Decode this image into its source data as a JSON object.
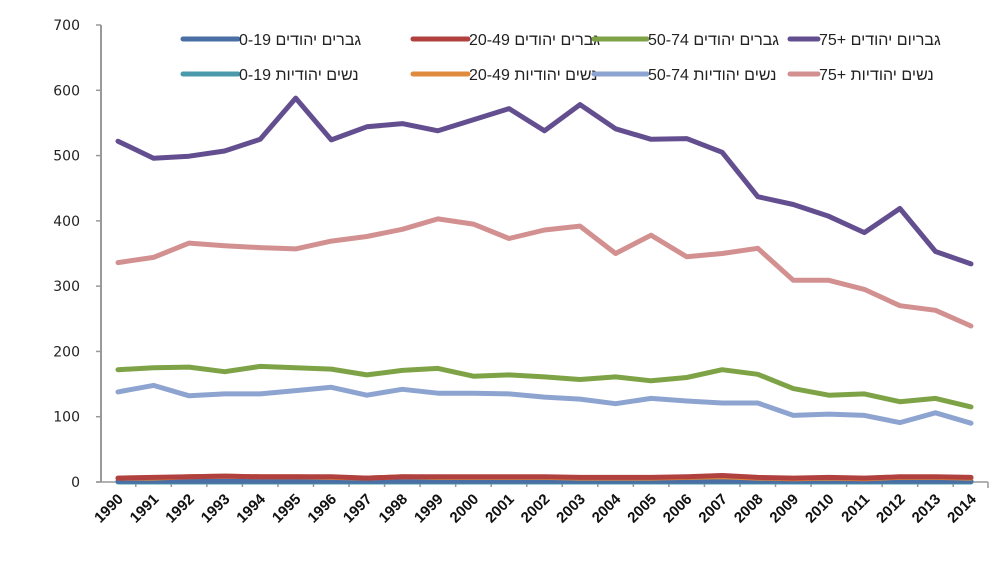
{
  "chart_data": {
    "type": "line",
    "title": "",
    "xlabel": "",
    "ylabel": "",
    "ylim": [
      0,
      700
    ],
    "yticks": [
      0,
      100,
      200,
      300,
      400,
      500,
      600,
      700
    ],
    "grid": false,
    "legend_position": "top-right",
    "x": [
      "1990",
      "1991",
      "1992",
      "1993",
      "1994",
      "1995",
      "1996",
      "1997",
      "1998",
      "1999",
      "2000",
      "2001",
      "2002",
      "2003",
      "2004",
      "2005",
      "2006",
      "2007",
      "2008",
      "2009",
      "2010",
      "2011",
      "2012",
      "2013",
      "2014"
    ],
    "series": [
      {
        "name": "גברים יהודים 0-19",
        "color": "#4a6fa5",
        "values": [
          1,
          1,
          1,
          1,
          1,
          1,
          1,
          1,
          1,
          1,
          1,
          1,
          1,
          1,
          1,
          1,
          1,
          1,
          1,
          1,
          1,
          1,
          1,
          1,
          1
        ]
      },
      {
        "name": "גברים יהודים 20-49",
        "color": "#b0413e",
        "values": [
          6,
          7,
          8,
          9,
          8,
          8,
          8,
          6,
          8,
          8,
          8,
          8,
          8,
          7,
          7,
          7,
          8,
          10,
          7,
          6,
          7,
          6,
          8,
          8,
          7
        ]
      },
      {
        "name": "גברים יהודים 50-74",
        "color": "#7ea346",
        "values": [
          172,
          175,
          176,
          169,
          177,
          175,
          173,
          164,
          171,
          174,
          162,
          164,
          161,
          157,
          161,
          155,
          160,
          172,
          165,
          143,
          133,
          135,
          123,
          128,
          115
        ]
      },
      {
        "name": "גבריום יהודים +75",
        "color": "#634f8f",
        "values": [
          522,
          496,
          499,
          507,
          525,
          588,
          524,
          544,
          549,
          538,
          555,
          572,
          538,
          578,
          541,
          525,
          526,
          505,
          437,
          425,
          407,
          382,
          419,
          353,
          334
        ]
      },
      {
        "name": "נשים יהודיות 0-19",
        "color": "#4a9aab",
        "values": [
          0,
          0,
          0,
          0,
          0,
          0,
          0,
          0,
          0,
          0,
          0,
          0,
          0,
          0,
          0,
          0,
          0,
          0,
          0,
          0,
          0,
          0,
          0,
          0,
          0
        ]
      },
      {
        "name": "נשים יהודיות 20-49",
        "color": "#e08a3c",
        "values": [
          6,
          6,
          8,
          9,
          8,
          8,
          7,
          6,
          8,
          7,
          7,
          7,
          7,
          6,
          6,
          6,
          7,
          8,
          6,
          5,
          6,
          5,
          7,
          7,
          6
        ]
      },
      {
        "name": "נשים יהודיות 50-74",
        "color": "#8ea4d0",
        "values": [
          138,
          148,
          132,
          135,
          135,
          140,
          145,
          133,
          142,
          136,
          136,
          135,
          130,
          127,
          120,
          128,
          124,
          121,
          121,
          102,
          104,
          102,
          91,
          106,
          90
        ]
      },
      {
        "name": "נשים יהודיות +75",
        "color": "#d29190",
        "values": [
          336,
          344,
          366,
          362,
          359,
          357,
          369,
          376,
          387,
          403,
          395,
          373,
          386,
          392,
          350,
          378,
          345,
          350,
          358,
          309,
          309,
          295,
          270,
          263,
          239
        ]
      }
    ]
  }
}
